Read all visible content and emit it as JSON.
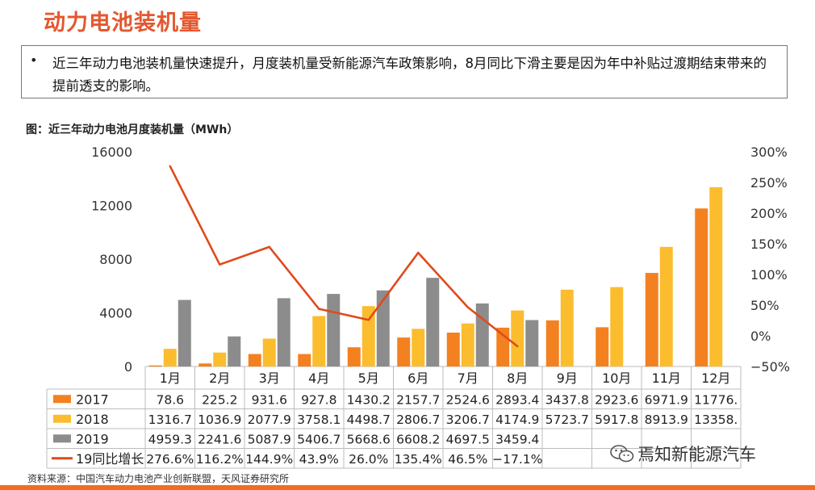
{
  "header": {
    "title": "动力电池装机量",
    "bullet_symbol": "•",
    "bullet": "近三年动力电池装机量快速提升，月度装机量受新能源汽车政策影响，8月同比下滑主要是因为年中补贴过渡期结束带来的提前透支的影响。"
  },
  "figure_caption": "图：近三年动力电池月度装机量（MWh）",
  "source_note": "资料来源：中国汽车动力电池产业创新联盟，天风证券研究所",
  "watermark": "焉知新能源汽车",
  "colors": {
    "2017": "#f4811f",
    "2018": "#fbbd2e",
    "2019": "#8c8c8c",
    "growth": "#e04a1b",
    "accent": "#e4572e",
    "bottom_bar": "#f26c21"
  },
  "chart_data": {
    "type": "bar",
    "categories": [
      "1月",
      "2月",
      "3月",
      "4月",
      "5月",
      "6月",
      "7月",
      "8月",
      "9月",
      "10月",
      "11月",
      "12月"
    ],
    "series": [
      {
        "name": "2017",
        "type": "bar",
        "axis": "left",
        "values": [
          78.6,
          225.2,
          931.6,
          927.8,
          1430.2,
          2157.7,
          2524.6,
          2893.4,
          3437.8,
          2923.6,
          6971.9,
          11776
        ]
      },
      {
        "name": "2018",
        "type": "bar",
        "axis": "left",
        "values": [
          1316.7,
          1036.9,
          2077.9,
          3758.1,
          4498.7,
          2806.7,
          3206.7,
          4174.9,
          5723.7,
          5917.8,
          8913.9,
          13358
        ]
      },
      {
        "name": "2019",
        "type": "bar",
        "axis": "left",
        "values": [
          4959.3,
          2241.6,
          5087.9,
          5406.7,
          5668.6,
          6608.2,
          4697.5,
          3459.4,
          null,
          null,
          null,
          null
        ]
      },
      {
        "name": "19同比增长",
        "type": "line",
        "axis": "right",
        "values": [
          276.6,
          116.2,
          144.9,
          43.9,
          26.0,
          135.4,
          46.5,
          -17.1,
          null,
          null,
          null,
          null
        ]
      }
    ],
    "table_rows": [
      [
        "78.6",
        "225.2",
        "931.6",
        "927.8",
        "1430.2",
        "2157.7",
        "2524.6",
        "2893.4",
        "3437.8",
        "2923.6",
        "6971.9",
        "11776."
      ],
      [
        "1316.7",
        "1036.9",
        "2077.9",
        "3758.1",
        "4498.7",
        "2806.7",
        "3206.7",
        "4174.9",
        "5723.7",
        "5917.8",
        "8913.9",
        "13358."
      ],
      [
        "4959.3",
        "2241.6",
        "5087.9",
        "5406.7",
        "5668.6",
        "6608.2",
        "4697.5",
        "3459.4",
        "",
        "",
        "",
        ""
      ],
      [
        "276.6%",
        "116.2%",
        "144.9%",
        "43.9%",
        "26.0%",
        "135.4%",
        "46.5%",
        "−17.1%",
        "",
        "",
        "",
        ""
      ]
    ],
    "left_axis": {
      "min": 0,
      "max": 16000,
      "ticks": [
        "0",
        "4000",
        "8000",
        "12000",
        "16000"
      ],
      "tick_values": [
        0,
        4000,
        8000,
        12000,
        16000
      ]
    },
    "right_axis": {
      "min": -50,
      "max": 300,
      "ticks": [
        "−50%",
        "0%",
        "50%",
        "100%",
        "150%",
        "200%",
        "250%",
        "300%"
      ],
      "tick_values": [
        -50,
        0,
        50,
        100,
        150,
        200,
        250,
        300
      ]
    },
    "grid": false,
    "legend_placement": "data-table"
  }
}
